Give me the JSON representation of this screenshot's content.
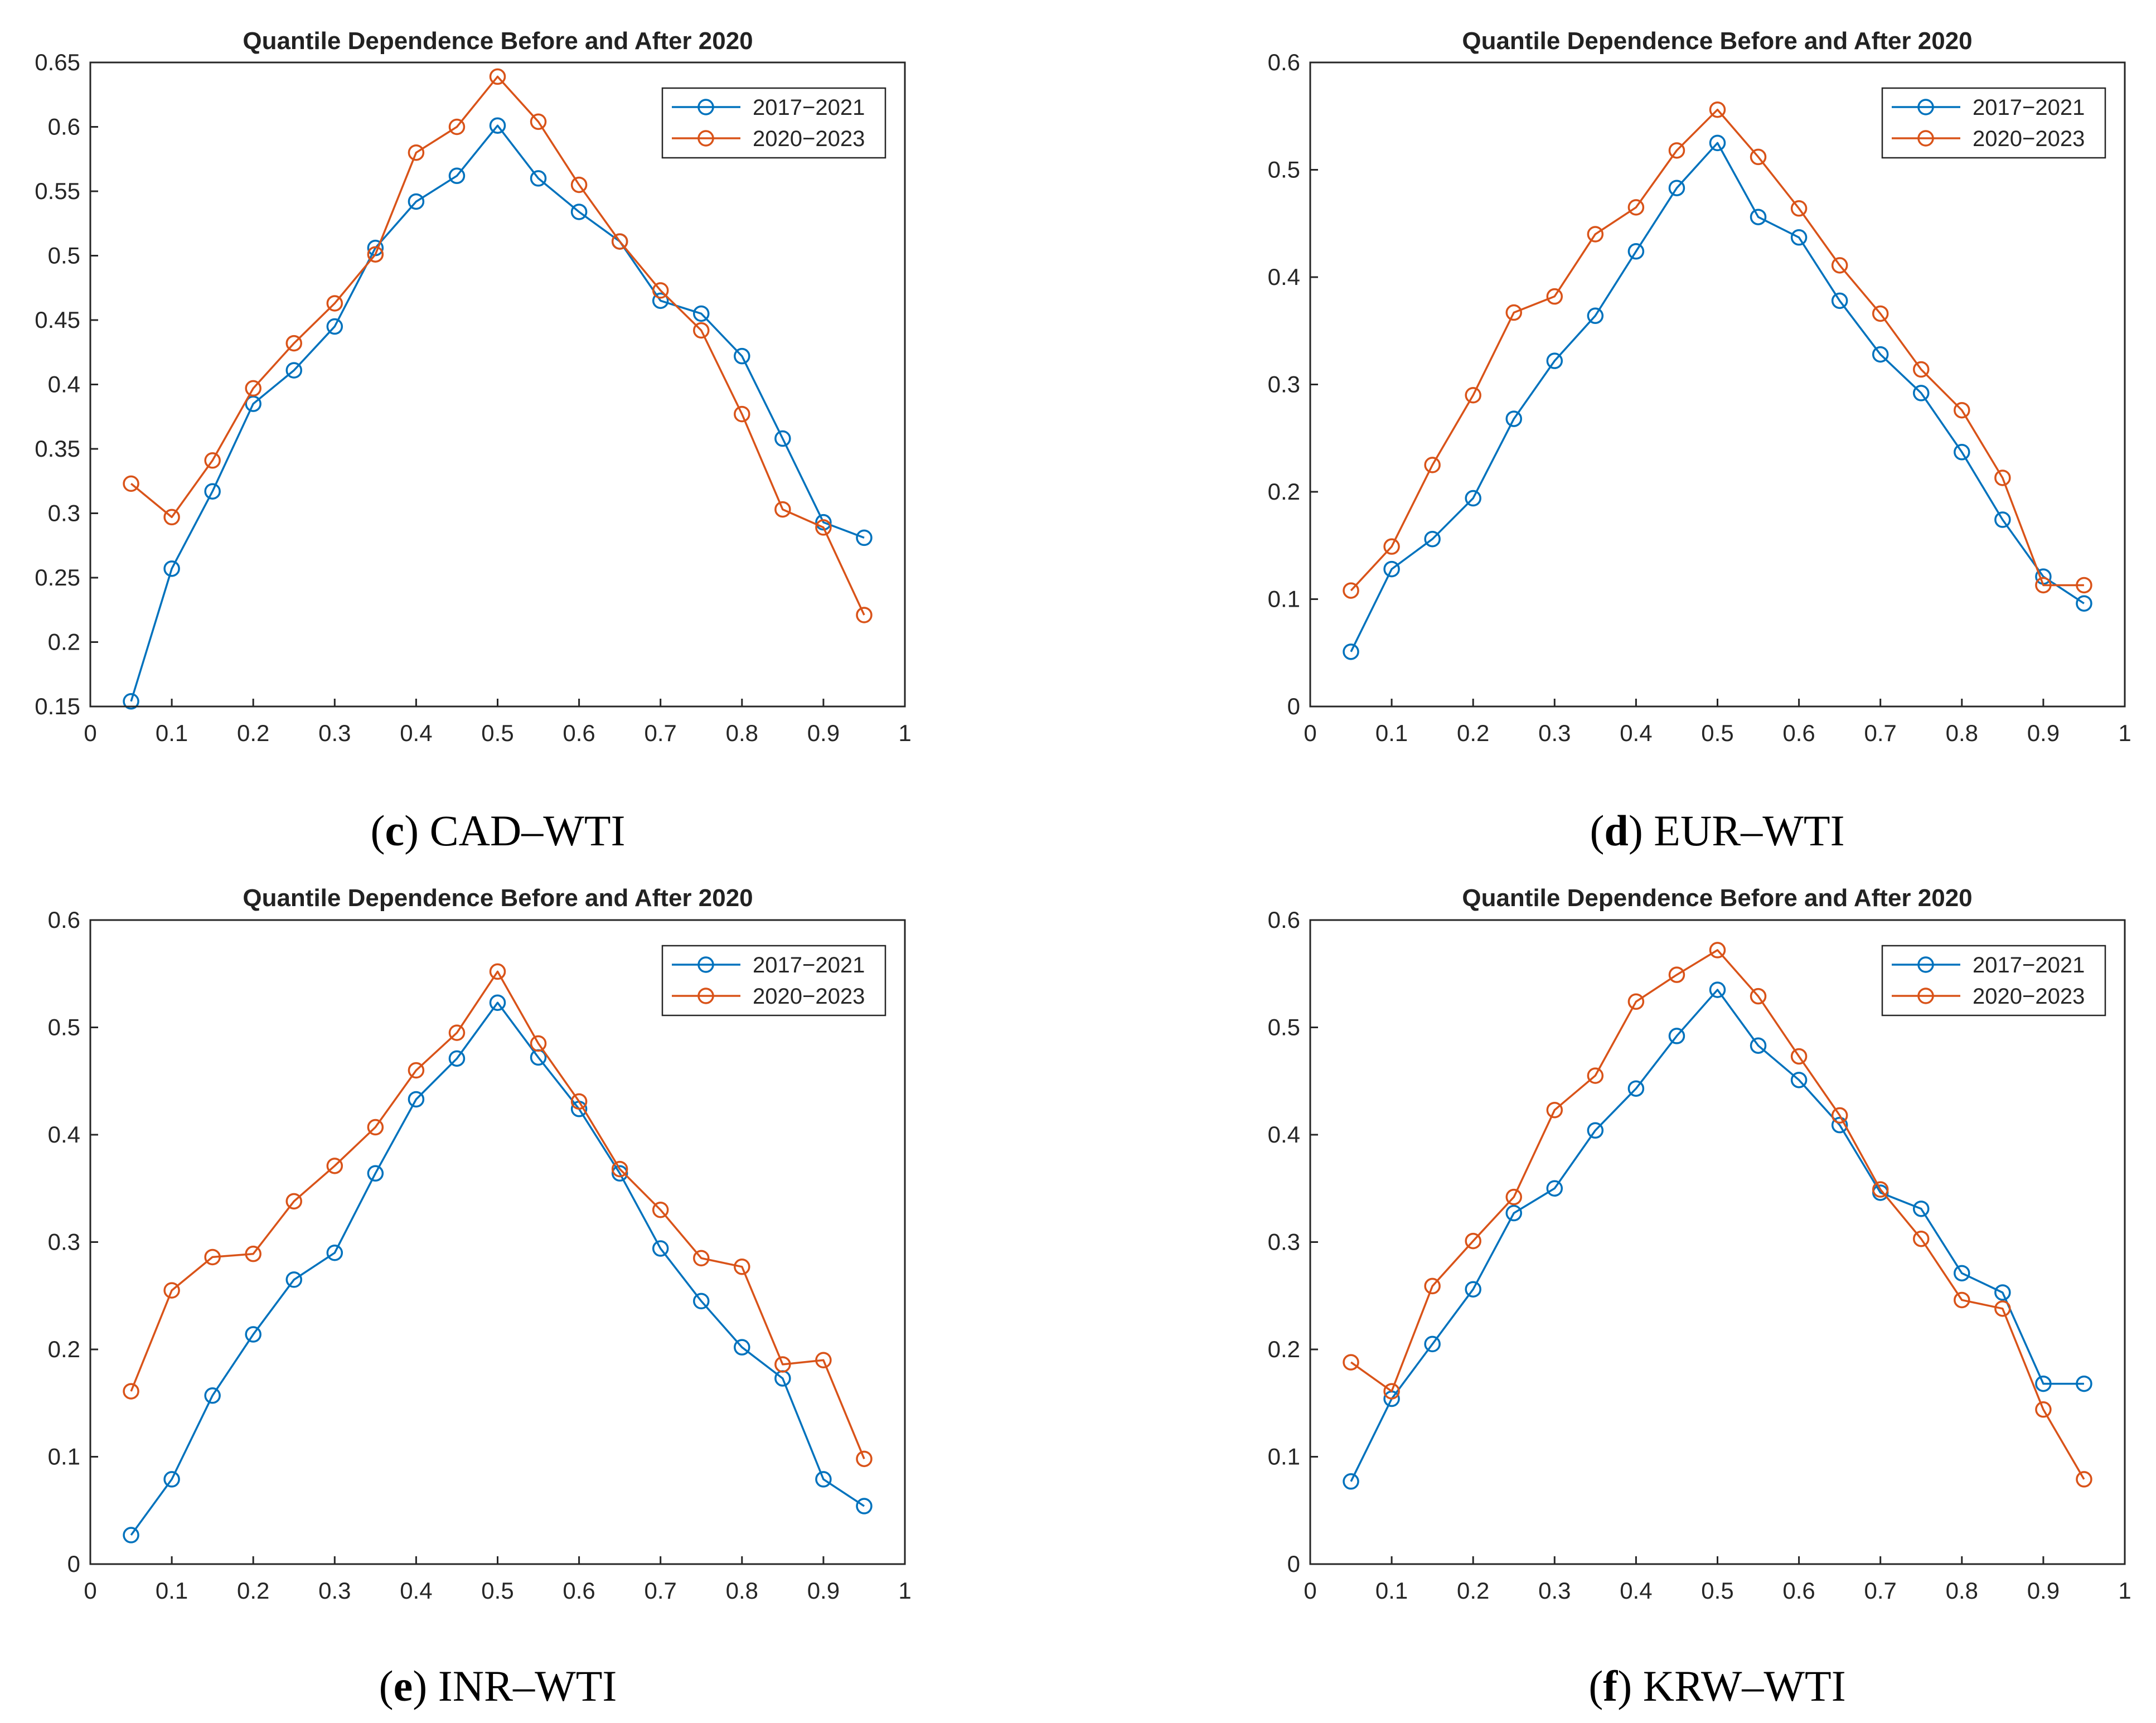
{
  "colors": {
    "series1": "#0072BD",
    "series2": "#D95319",
    "axis": "#262626"
  },
  "chart_data": [
    {
      "type": "line",
      "panel": "c",
      "title": "Quantile Dependence Before and After 2020",
      "caption_label": "c",
      "caption_text": "CAD–WTI",
      "x": [
        0.05,
        0.1,
        0.15,
        0.2,
        0.25,
        0.3,
        0.35,
        0.4,
        0.45,
        0.5,
        0.55,
        0.6,
        0.65,
        0.7,
        0.75,
        0.8,
        0.85,
        0.9,
        0.95
      ],
      "xlim": [
        0,
        1
      ],
      "ylim": [
        0.15,
        0.65
      ],
      "xticks": [
        0,
        0.1,
        0.2,
        0.3,
        0.4,
        0.5,
        0.6,
        0.7,
        0.8,
        0.9,
        1
      ],
      "xtick_labels": [
        "0",
        "0.1",
        "0.2",
        "0.3",
        "0.4",
        "0.5",
        "0.6",
        "0.7",
        "0.8",
        "0.9",
        "1"
      ],
      "yticks": [
        0.15,
        0.2,
        0.25,
        0.3,
        0.35,
        0.4,
        0.45,
        0.5,
        0.55,
        0.6,
        0.65
      ],
      "ytick_labels": [
        "0.15",
        "0.2",
        "0.25",
        "0.3",
        "0.35",
        "0.4",
        "0.45",
        "0.5",
        "0.55",
        "0.6",
        "0.65"
      ],
      "legend_position": "top-right",
      "series": [
        {
          "name": "2017−2021",
          "values": [
            0.154,
            0.257,
            0.317,
            0.385,
            0.411,
            0.445,
            0.506,
            0.542,
            0.562,
            0.601,
            0.56,
            0.534,
            0.511,
            0.465,
            0.455,
            0.422,
            0.358,
            0.293,
            0.281
          ]
        },
        {
          "name": "2020−2023",
          "values": [
            0.323,
            0.297,
            0.341,
            0.397,
            0.432,
            0.463,
            0.501,
            0.58,
            0.6,
            0.639,
            0.604,
            0.555,
            0.511,
            0.473,
            0.442,
            0.377,
            0.303,
            0.289,
            0.221
          ]
        }
      ]
    },
    {
      "type": "line",
      "panel": "d",
      "title": "Quantile Dependence Before and After 2020",
      "caption_label": "d",
      "caption_text": "EUR–WTI",
      "x": [
        0.05,
        0.1,
        0.15,
        0.2,
        0.25,
        0.3,
        0.35,
        0.4,
        0.45,
        0.5,
        0.55,
        0.6,
        0.65,
        0.7,
        0.75,
        0.8,
        0.85,
        0.9,
        0.95
      ],
      "xlim": [
        0,
        1
      ],
      "ylim": [
        0,
        0.6
      ],
      "xticks": [
        0,
        0.1,
        0.2,
        0.3,
        0.4,
        0.5,
        0.6,
        0.7,
        0.8,
        0.9,
        1
      ],
      "xtick_labels": [
        "0",
        "0.1",
        "0.2",
        "0.3",
        "0.4",
        "0.5",
        "0.6",
        "0.7",
        "0.8",
        "0.9",
        "1"
      ],
      "yticks": [
        0,
        0.1,
        0.2,
        0.3,
        0.4,
        0.5,
        0.6
      ],
      "ytick_labels": [
        "0",
        "0.1",
        "0.2",
        "0.3",
        "0.4",
        "0.5",
        "0.6"
      ],
      "legend_position": "top-right",
      "series": [
        {
          "name": "2017−2021",
          "values": [
            0.051,
            0.128,
            0.156,
            0.194,
            0.268,
            0.322,
            0.364,
            0.424,
            0.483,
            0.525,
            0.456,
            0.437,
            0.378,
            0.328,
            0.292,
            0.237,
            0.174,
            0.121,
            0.096
          ]
        },
        {
          "name": "2020−2023",
          "values": [
            0.108,
            0.149,
            0.225,
            0.29,
            0.367,
            0.382,
            0.44,
            0.465,
            0.518,
            0.556,
            0.512,
            0.464,
            0.411,
            0.366,
            0.314,
            0.276,
            0.213,
            0.113,
            0.113
          ]
        }
      ]
    },
    {
      "type": "line",
      "panel": "e",
      "title": "Quantile Dependence Before and After 2020",
      "caption_label": "e",
      "caption_text": "INR–WTI",
      "x": [
        0.05,
        0.1,
        0.15,
        0.2,
        0.25,
        0.3,
        0.35,
        0.4,
        0.45,
        0.5,
        0.55,
        0.6,
        0.65,
        0.7,
        0.75,
        0.8,
        0.85,
        0.9,
        0.95
      ],
      "xlim": [
        0,
        1
      ],
      "ylim": [
        0,
        0.6
      ],
      "xticks": [
        0,
        0.1,
        0.2,
        0.3,
        0.4,
        0.5,
        0.6,
        0.7,
        0.8,
        0.9,
        1
      ],
      "xtick_labels": [
        "0",
        "0.1",
        "0.2",
        "0.3",
        "0.4",
        "0.5",
        "0.6",
        "0.7",
        "0.8",
        "0.9",
        "1"
      ],
      "yticks": [
        0,
        0.1,
        0.2,
        0.3,
        0.4,
        0.5,
        0.6
      ],
      "ytick_labels": [
        "0",
        "0.1",
        "0.2",
        "0.3",
        "0.4",
        "0.5",
        "0.6"
      ],
      "legend_position": "top-right",
      "series": [
        {
          "name": "2017−2021",
          "values": [
            0.027,
            0.079,
            0.157,
            0.214,
            0.265,
            0.29,
            0.364,
            0.433,
            0.471,
            0.523,
            0.472,
            0.424,
            0.364,
            0.294,
            0.245,
            0.202,
            0.173,
            0.079,
            0.054
          ]
        },
        {
          "name": "2020−2023",
          "values": [
            0.161,
            0.255,
            0.286,
            0.289,
            0.338,
            0.371,
            0.407,
            0.46,
            0.495,
            0.552,
            0.485,
            0.431,
            0.368,
            0.33,
            0.285,
            0.277,
            0.186,
            0.19,
            0.098
          ]
        }
      ]
    },
    {
      "type": "line",
      "panel": "f",
      "title": "Quantile Dependence Before and After 2020",
      "caption_label": "f",
      "caption_text": "KRW–WTI",
      "x": [
        0.05,
        0.1,
        0.15,
        0.2,
        0.25,
        0.3,
        0.35,
        0.4,
        0.45,
        0.5,
        0.55,
        0.6,
        0.65,
        0.7,
        0.75,
        0.8,
        0.85,
        0.9,
        0.95
      ],
      "xlim": [
        0,
        1
      ],
      "ylim": [
        0,
        0.6
      ],
      "xticks": [
        0,
        0.1,
        0.2,
        0.3,
        0.4,
        0.5,
        0.6,
        0.7,
        0.8,
        0.9,
        1
      ],
      "xtick_labels": [
        "0",
        "0.1",
        "0.2",
        "0.3",
        "0.4",
        "0.5",
        "0.6",
        "0.7",
        "0.8",
        "0.9",
        "1"
      ],
      "yticks": [
        0,
        0.1,
        0.2,
        0.3,
        0.4,
        0.5,
        0.6
      ],
      "ytick_labels": [
        "0",
        "0.1",
        "0.2",
        "0.3",
        "0.4",
        "0.5",
        "0.6"
      ],
      "legend_position": "top-right",
      "series": [
        {
          "name": "2017−2021",
          "values": [
            0.077,
            0.154,
            0.205,
            0.256,
            0.327,
            0.35,
            0.404,
            0.443,
            0.492,
            0.535,
            0.483,
            0.451,
            0.409,
            0.346,
            0.331,
            0.271,
            0.253,
            0.168,
            0.168
          ]
        },
        {
          "name": "2020−2023",
          "values": [
            0.188,
            0.161,
            0.259,
            0.301,
            0.342,
            0.423,
            0.455,
            0.524,
            0.549,
            0.572,
            0.529,
            0.473,
            0.418,
            0.349,
            0.303,
            0.246,
            0.238,
            0.144,
            0.079
          ]
        }
      ]
    }
  ]
}
